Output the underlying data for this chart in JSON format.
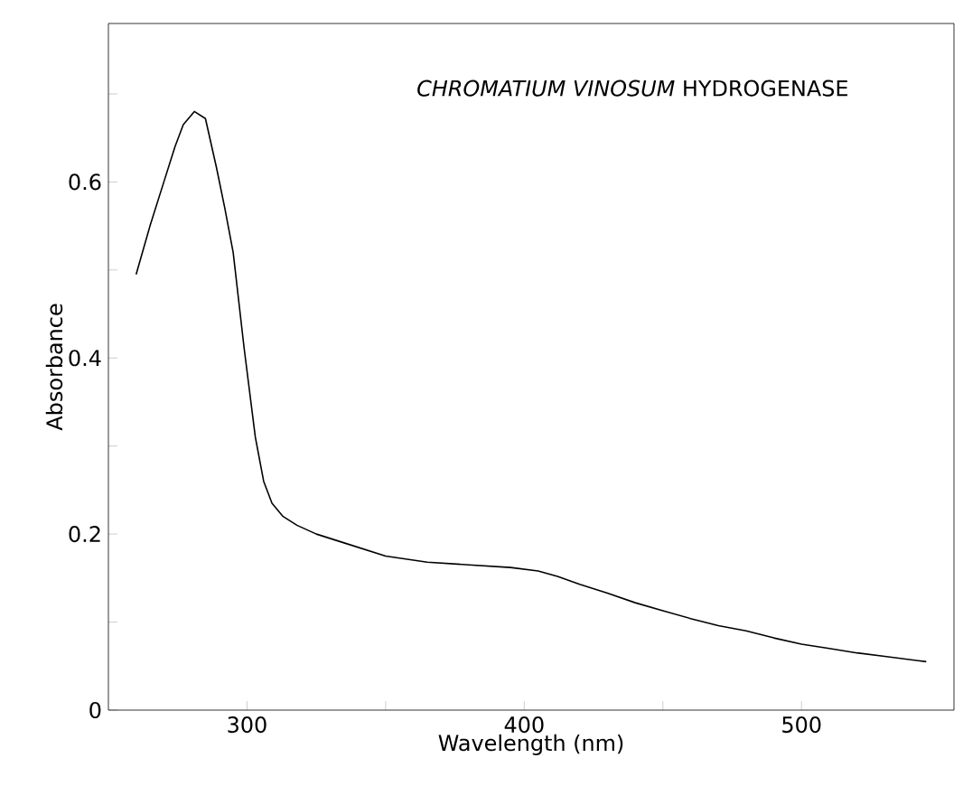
{
  "chart_data": {
    "type": "line",
    "title": "*CHROMATIUM VINOSUM* HYDROGENASE",
    "xlabel": "Wavelength (nm)",
    "ylabel": "Absorbance",
    "x": [
      260,
      265,
      270,
      274,
      277,
      281,
      285,
      289,
      292,
      295,
      299,
      303,
      306,
      309,
      313,
      318,
      325,
      335,
      350,
      365,
      380,
      395,
      405,
      412,
      420,
      430,
      440,
      450,
      460,
      470,
      480,
      490,
      500,
      510,
      520,
      530,
      545
    ],
    "series": [
      {
        "color": "#000000",
        "values": [
          0.495,
          0.55,
          0.6,
          0.64,
          0.665,
          0.68,
          0.672,
          0.616,
          0.57,
          0.52,
          0.41,
          0.31,
          0.26,
          0.235,
          0.22,
          0.21,
          0.2,
          0.19,
          0.175,
          0.168,
          0.165,
          0.162,
          0.158,
          0.152,
          0.143,
          0.133,
          0.122,
          0.113,
          0.104,
          0.096,
          0.09,
          0.082,
          0.075,
          0.07,
          0.065,
          0.061,
          0.055
        ]
      }
    ],
    "xlim": [
      250,
      555
    ],
    "ylim": [
      0,
      0.78
    ],
    "xticks": [
      300,
      {
        "value": 350,
        "label": null
      },
      400,
      {
        "value": 450,
        "label": null
      },
      500
    ],
    "yticks": [
      0,
      {
        "value": 0.1,
        "label": null
      },
      0.2,
      {
        "value": 0.3,
        "label": null
      },
      0.4,
      {
        "value": 0.5,
        "label": null
      },
      0.6,
      {
        "value": 0.7,
        "label": null
      }
    ],
    "grid": false,
    "marker": "none",
    "line_style": "solid"
  }
}
